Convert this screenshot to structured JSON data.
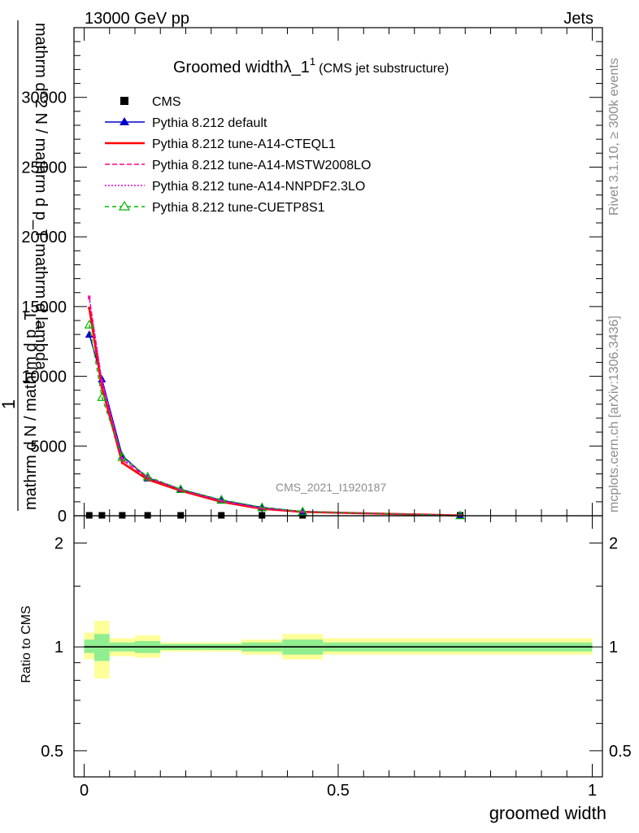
{
  "header": {
    "energy_label": "13000 GeV pp",
    "category_label": "Jets"
  },
  "side_labels": {
    "rivet": "Rivet 3.1.10, ≥ 300k events",
    "mcplots": "mcplots.cern.ch [arXiv:1306.3436]"
  },
  "chart_data": {
    "type": "line",
    "title_main": "Groomed widthλ_1",
    "title_sup": "1",
    "title_sub": "(CMS jet substructure)",
    "watermark": "CMS_2021_I1920187",
    "xlabel": "groomed width",
    "ylabel_numerator": "1",
    "ylabel_line1": "mathrm d N / mathrm d p_T",
    "ylabel_line2": "mathrm d^2 N / mathrm d p_T mathrm d lambda",
    "xlim": [
      -0.02,
      1.02
    ],
    "main_ylim": [
      0,
      35000
    ],
    "main_yticks": [
      0,
      5000,
      10000,
      15000,
      20000,
      25000,
      30000
    ],
    "main_ytick_labels": [
      "0",
      "5000",
      "10000",
      "15000",
      "20000",
      "25000",
      "30000"
    ],
    "ratio_ylabel": "Ratio to CMS",
    "ratio_yticks": [
      0.5,
      1,
      2
    ],
    "ratio_ytick_labels": [
      "0.5",
      "1",
      "2"
    ],
    "xticks": [
      0,
      0.5,
      1
    ],
    "xtick_labels": [
      "0",
      "0.5",
      "1"
    ],
    "bins": [
      {
        "lo": 0.0,
        "hi": 0.02,
        "x": 0.01
      },
      {
        "lo": 0.02,
        "hi": 0.05,
        "x": 0.035
      },
      {
        "lo": 0.05,
        "hi": 0.1,
        "x": 0.075
      },
      {
        "lo": 0.1,
        "hi": 0.15,
        "x": 0.125
      },
      {
        "lo": 0.15,
        "hi": 0.23,
        "x": 0.19
      },
      {
        "lo": 0.23,
        "hi": 0.31,
        "x": 0.27
      },
      {
        "lo": 0.31,
        "hi": 0.39,
        "x": 0.35
      },
      {
        "lo": 0.39,
        "hi": 0.47,
        "x": 0.43
      },
      {
        "lo": 0.47,
        "hi": 1.0,
        "x": 0.74
      }
    ],
    "series": [
      {
        "name": "CMS",
        "style": "data",
        "color": "#000000",
        "values": [
          30,
          30,
          30,
          30,
          30,
          30,
          30,
          30,
          30
        ]
      },
      {
        "name": "Pythia 8.212 default",
        "style": "solid-triangle",
        "color": "#0000cc",
        "values": [
          13000,
          9800,
          4300,
          2700,
          1900,
          1100,
          600,
          300,
          20
        ]
      },
      {
        "name": "Pythia 8.212 tune-A14-CTEQL1",
        "style": "solid-thick",
        "color": "#ff0000",
        "values": [
          14900,
          9200,
          3800,
          2600,
          1800,
          1000,
          500,
          280,
          18
        ]
      },
      {
        "name": "Pythia 8.212 tune-A14-MSTW2008LO",
        "style": "dashed",
        "color": "#ff0080",
        "values": [
          15700,
          9500,
          4000,
          2700,
          1850,
          1050,
          520,
          290,
          19
        ]
      },
      {
        "name": "Pythia 8.212 tune-A14-NNPDF2.3LO",
        "style": "dotted",
        "color": "#e000e0",
        "values": [
          15600,
          9700,
          4100,
          2800,
          1900,
          1080,
          540,
          295,
          19
        ]
      },
      {
        "name": "Pythia 8.212 tune-CUETP8S1",
        "style": "dashed-open-triangle",
        "color": "#00b400",
        "values": [
          13700,
          8500,
          4200,
          2800,
          1900,
          1150,
          600,
          300,
          20
        ]
      }
    ],
    "ratio_band_inner": [
      [
        0.96,
        1.05
      ],
      [
        0.91,
        1.09
      ],
      [
        0.97,
        1.03
      ],
      [
        0.96,
        1.04
      ],
      [
        0.98,
        1.02
      ],
      [
        0.98,
        1.02
      ],
      [
        0.97,
        1.03
      ],
      [
        0.95,
        1.05
      ],
      [
        0.97,
        1.03
      ]
    ],
    "ratio_band_outer": [
      [
        0.92,
        1.1
      ],
      [
        0.81,
        1.19
      ],
      [
        0.94,
        1.06
      ],
      [
        0.93,
        1.08
      ],
      [
        0.97,
        1.03
      ],
      [
        0.97,
        1.03
      ],
      [
        0.95,
        1.05
      ],
      [
        0.92,
        1.09
      ],
      [
        0.95,
        1.06
      ]
    ],
    "colors": {
      "band_inner": "#90ee90",
      "band_outer": "#ffff99"
    }
  }
}
